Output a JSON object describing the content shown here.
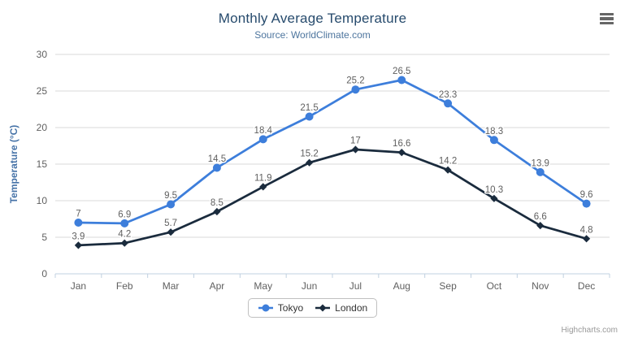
{
  "chart_data": {
    "type": "line",
    "title": "Monthly Average Temperature",
    "subtitle": "Source: WorldClimate.com",
    "xlabel": "",
    "ylabel": "Temperature (°C)",
    "categories": [
      "Jan",
      "Feb",
      "Mar",
      "Apr",
      "May",
      "Jun",
      "Jul",
      "Aug",
      "Sep",
      "Oct",
      "Nov",
      "Dec"
    ],
    "yticks": [
      0,
      5,
      10,
      15,
      20,
      25,
      30
    ],
    "ylim": [
      0,
      30
    ],
    "grid": true,
    "legend_position": "bottom",
    "data_labels": true,
    "series": [
      {
        "name": "Tokyo",
        "color": "#3d7edb",
        "marker": "circle",
        "values": [
          7,
          6.9,
          9.5,
          14.5,
          18.4,
          21.5,
          25.2,
          26.5,
          23.3,
          18.3,
          13.9,
          9.6
        ]
      },
      {
        "name": "London",
        "color": "#1a2b3d",
        "marker": "diamond",
        "values": [
          3.9,
          4.2,
          5.7,
          8.5,
          11.9,
          15.2,
          17,
          16.6,
          14.2,
          10.3,
          6.6,
          4.8
        ]
      }
    ],
    "colors": {
      "grid_line": "#d8d8d8",
      "axis_line": "#c0d0e0",
      "axis_label": "#606060",
      "data_label": "#606060",
      "title": "#274b6d",
      "subtitle": "#4d759e",
      "y_axis_title": "#4572a7"
    }
  },
  "menu": {
    "icon": "hamburger-icon"
  },
  "credits": {
    "label": "Highcharts.com"
  }
}
